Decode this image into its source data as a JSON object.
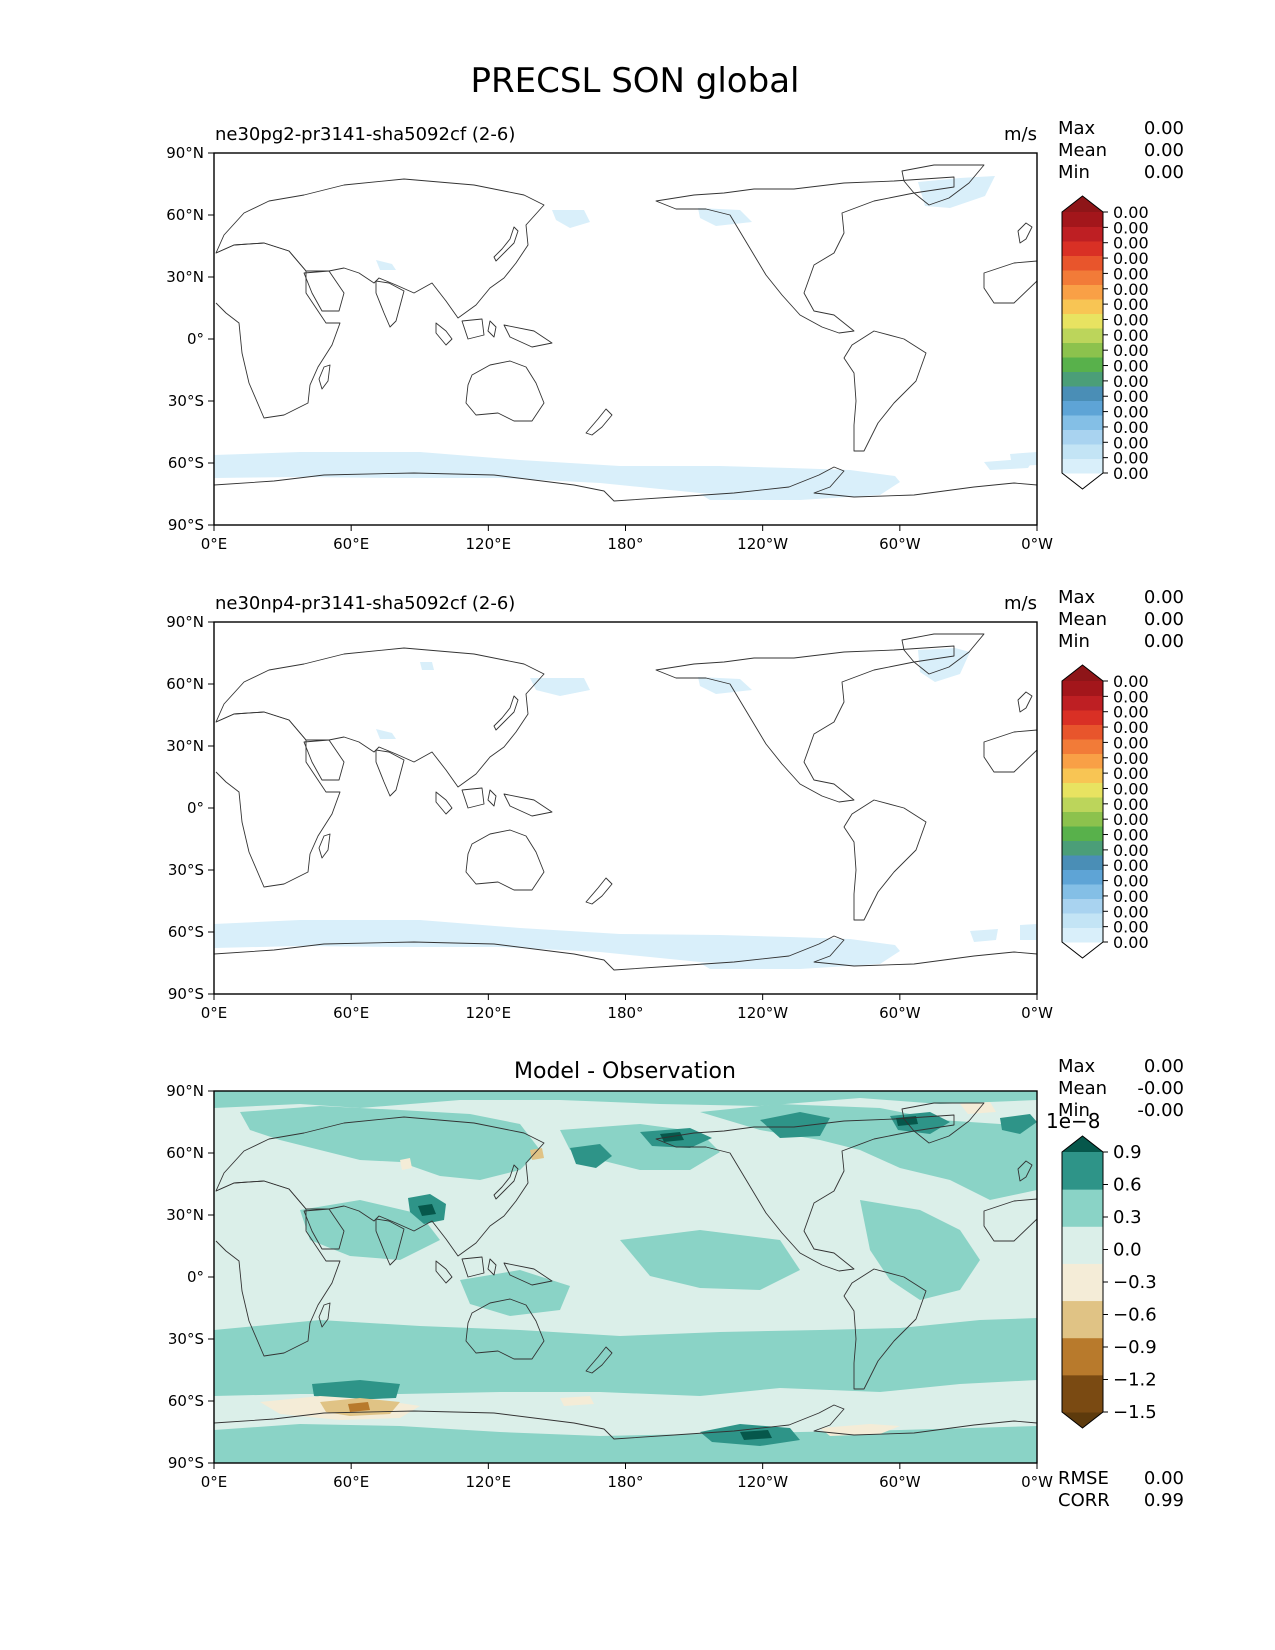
{
  "chart_data": {
    "type": "heatmap",
    "title": "PRECSL SON global",
    "x_ticks": [
      "0°E",
      "60°E",
      "120°E",
      "180°",
      "120°W",
      "60°W",
      "0°W"
    ],
    "y_ticks": [
      "90°N",
      "60°N",
      "30°N",
      "0°",
      "30°S",
      "60°S",
      "90°S"
    ],
    "xlim": [
      0,
      360
    ],
    "ylim": [
      -90,
      90
    ],
    "panels": [
      {
        "id": "test",
        "left_title": "ne30pg2-pr3141-sha5092cf (2-6)",
        "center_title": "",
        "units": "m/s",
        "stats": [
          {
            "label": "Max",
            "value": "0.00"
          },
          {
            "label": "Mean",
            "value": "0.00"
          },
          {
            "label": "Min",
            "value": "0.00"
          }
        ],
        "colorbar": {
          "exponent": "",
          "colors": [
            "#ffffff",
            "#d9effa",
            "#c3e4f5",
            "#a9d3f0",
            "#84bfe6",
            "#5ea4d6",
            "#4a8eb6",
            "#4b9e78",
            "#58b14b",
            "#8cc24d",
            "#bcd55b",
            "#e8e361",
            "#f8c554",
            "#f9a046",
            "#f27b38",
            "#e8552c",
            "#d93025",
            "#be1f23",
            "#a3161b",
            "#8e1518"
          ],
          "tick_labels": [
            "0.00",
            "0.00",
            "0.00",
            "0.00",
            "0.00",
            "0.00",
            "0.00",
            "0.00",
            "0.00",
            "0.00",
            "0.00",
            "0.00",
            "0.00",
            "0.00",
            "0.00",
            "0.00",
            "0.00",
            "0.00"
          ]
        },
        "footer_stats": []
      },
      {
        "id": "reference",
        "left_title": "ne30np4-pr3141-sha5092cf (2-6)",
        "center_title": "",
        "units": "m/s",
        "stats": [
          {
            "label": "Max",
            "value": "0.00"
          },
          {
            "label": "Mean",
            "value": "0.00"
          },
          {
            "label": "Min",
            "value": "0.00"
          }
        ],
        "colorbar": {
          "exponent": "",
          "colors": [
            "#ffffff",
            "#d9effa",
            "#c3e4f5",
            "#a9d3f0",
            "#84bfe6",
            "#5ea4d6",
            "#4a8eb6",
            "#4b9e78",
            "#58b14b",
            "#8cc24d",
            "#bcd55b",
            "#e8e361",
            "#f8c554",
            "#f9a046",
            "#f27b38",
            "#e8552c",
            "#d93025",
            "#be1f23",
            "#a3161b",
            "#8e1518"
          ],
          "tick_labels": [
            "0.00",
            "0.00",
            "0.00",
            "0.00",
            "0.00",
            "0.00",
            "0.00",
            "0.00",
            "0.00",
            "0.00",
            "0.00",
            "0.00",
            "0.00",
            "0.00",
            "0.00",
            "0.00",
            "0.00",
            "0.00"
          ]
        },
        "footer_stats": []
      },
      {
        "id": "difference",
        "left_title": "",
        "center_title": "Model - Observation",
        "units": "",
        "stats": [
          {
            "label": "Max",
            "value": "0.00"
          },
          {
            "label": "Mean",
            "value": "-0.00"
          },
          {
            "label": "Min",
            "value": "-0.00"
          }
        ],
        "colorbar": {
          "exponent": "1e−8",
          "colors": [
            "#5d3a0c",
            "#7a4a12",
            "#b87a2c",
            "#e0c385",
            "#f4ecd7",
            "#dbefe9",
            "#8ad3c6",
            "#2e9488",
            "#06574b"
          ],
          "tick_labels": [
            "0.9",
            "0.6",
            "0.3",
            "0.0",
            "−0.3",
            "−0.6",
            "−0.9",
            "−1.2",
            "−1.5"
          ]
        },
        "footer_stats": [
          {
            "label": "RMSE",
            "value": "0.00"
          },
          {
            "label": "CORR",
            "value": "0.99"
          }
        ]
      }
    ]
  }
}
